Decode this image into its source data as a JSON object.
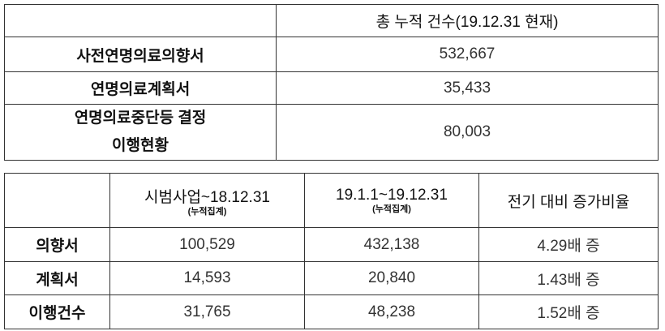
{
  "summary_table": {
    "header": "총 누적 건수(19.12.31 현재)",
    "rows": [
      {
        "label": "사전연명의료의향서",
        "value": "532,667"
      },
      {
        "label": "연명의료계획서",
        "value": "35,433"
      },
      {
        "label_line1": "연명의료중단등 결정",
        "label_line2": "이행현황",
        "value": "80,003"
      }
    ]
  },
  "comparison_table": {
    "headers": [
      {
        "title": "시범사업~18.12.31",
        "sub": "(누적집계)"
      },
      {
        "title": "19.1.1~19.12.31",
        "sub": "(누적집계)"
      },
      {
        "title": "전기 대비 증가비율"
      }
    ],
    "rows": [
      {
        "label": "의향서",
        "values": [
          "100,529",
          "432,138",
          "4.29배 증"
        ]
      },
      {
        "label": "계획서",
        "values": [
          "14,593",
          "20,840",
          "1.43배 증"
        ]
      },
      {
        "label": "이행건수",
        "values": [
          "31,765",
          "48,238",
          "1.52배 증"
        ]
      }
    ]
  }
}
